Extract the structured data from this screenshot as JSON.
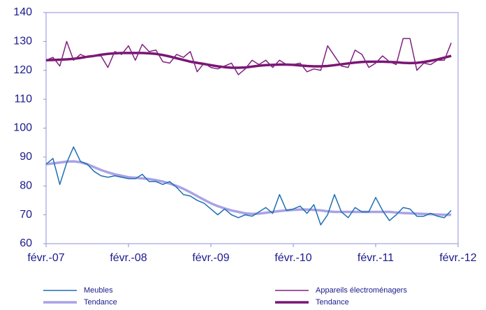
{
  "chart_data": {
    "type": "line",
    "x": [
      0,
      1,
      2,
      3,
      4,
      5,
      6,
      7,
      8,
      9,
      10,
      11,
      12,
      13,
      14,
      15,
      16,
      17,
      18,
      19,
      20,
      21,
      22,
      23,
      24,
      25,
      26,
      27,
      28,
      29,
      30,
      31,
      32,
      33,
      34,
      35,
      36,
      37,
      38,
      39,
      40,
      41,
      42,
      43,
      44,
      45,
      46,
      47,
      48,
      49,
      50,
      51,
      52,
      53,
      54,
      55,
      56,
      57,
      58,
      59
    ],
    "xlim": [
      0,
      60
    ],
    "xticks": [
      {
        "value": 0,
        "label": "févr.-07"
      },
      {
        "value": 12,
        "label": "févr.-08"
      },
      {
        "value": 24,
        "label": "févr.-09"
      },
      {
        "value": 36,
        "label": "févr.-10"
      },
      {
        "value": 48,
        "label": "févr.-11"
      },
      {
        "value": 60,
        "label": "févr.-12"
      }
    ],
    "ylim": [
      60,
      140
    ],
    "yticks": [
      60,
      70,
      80,
      90,
      100,
      110,
      120,
      130,
      140
    ],
    "grid": false,
    "series": [
      {
        "name": "Meubles",
        "color": "#1f6fb3",
        "width": 1.5,
        "values": [
          87.5,
          89.5,
          80.5,
          88,
          93.5,
          88.5,
          87.5,
          85,
          83.5,
          83,
          83.5,
          83,
          82.5,
          82.5,
          84,
          81.5,
          81.5,
          80.5,
          81.5,
          79.5,
          77,
          76.5,
          75,
          74,
          72,
          70,
          72,
          70,
          69,
          70,
          69.5,
          71,
          72.5,
          70.5,
          77,
          71.5,
          72,
          73,
          70.5,
          73.5,
          66.5,
          70,
          77,
          71,
          69,
          72.5,
          71,
          71,
          76,
          71.5,
          68,
          70,
          72.5,
          72,
          69.5,
          69.5,
          70.5,
          69.5,
          69,
          71.5
        ]
      },
      {
        "name": "Tendance",
        "color": "#a9a2e6",
        "width": 3.5,
        "values": [
          87.5,
          87.8,
          88.1,
          88.4,
          88.5,
          88.2,
          87.5,
          86.5,
          85.5,
          84.7,
          84,
          83.5,
          83,
          82.8,
          82.6,
          82.4,
          82,
          81.5,
          80.8,
          80,
          79,
          77.8,
          76.5,
          75.2,
          74,
          73,
          72.2,
          71.5,
          71,
          70.5,
          70.3,
          70.4,
          70.7,
          71,
          71.3,
          71.5,
          71.7,
          71.8,
          71.8,
          71.7,
          71.5,
          71.2,
          71,
          71,
          71,
          71,
          71,
          71,
          71,
          71,
          71,
          70.8,
          70.6,
          70.5,
          70.4,
          70.3,
          70.2,
          70.1,
          70,
          70
        ]
      },
      {
        "name": "Appareils électroménagers",
        "color": "#80207e",
        "width": 1.5,
        "values": [
          123.5,
          124.5,
          121.5,
          130,
          123.5,
          125.5,
          124.5,
          125,
          125,
          121,
          126.5,
          125.5,
          128.5,
          123.5,
          129,
          126.5,
          127,
          123,
          122.5,
          125.5,
          124.5,
          126.5,
          119.5,
          122.5,
          121,
          120.5,
          121.5,
          122.5,
          118.5,
          120.5,
          123.5,
          122,
          123.5,
          121,
          123.5,
          122,
          122,
          122.5,
          119.5,
          120.5,
          120,
          128.5,
          125,
          121.5,
          121,
          127,
          125.5,
          121,
          122.5,
          125,
          123,
          122,
          131,
          131,
          120,
          122.5,
          122,
          123.5,
          123.5,
          129.5
        ]
      },
      {
        "name": "Tendance",
        "color": "#7a1574",
        "width": 3.5,
        "values": [
          123.5,
          123.6,
          123.7,
          123.8,
          124,
          124.3,
          124.7,
          125,
          125.4,
          125.7,
          125.9,
          126,
          126,
          126,
          126,
          125.9,
          125.7,
          125.3,
          124.8,
          124.2,
          123.6,
          123,
          122.6,
          122.2,
          121.8,
          121.4,
          121.1,
          120.9,
          120.9,
          121,
          121.3,
          121.6,
          121.8,
          121.9,
          122,
          122,
          121.9,
          121.7,
          121.5,
          121.4,
          121.4,
          121.5,
          121.8,
          122.1,
          122.4,
          122.7,
          122.9,
          123,
          123,
          123,
          122.9,
          122.8,
          122.6,
          122.5,
          122.6,
          122.9,
          123.3,
          123.8,
          124.4,
          125
        ]
      }
    ]
  }
}
